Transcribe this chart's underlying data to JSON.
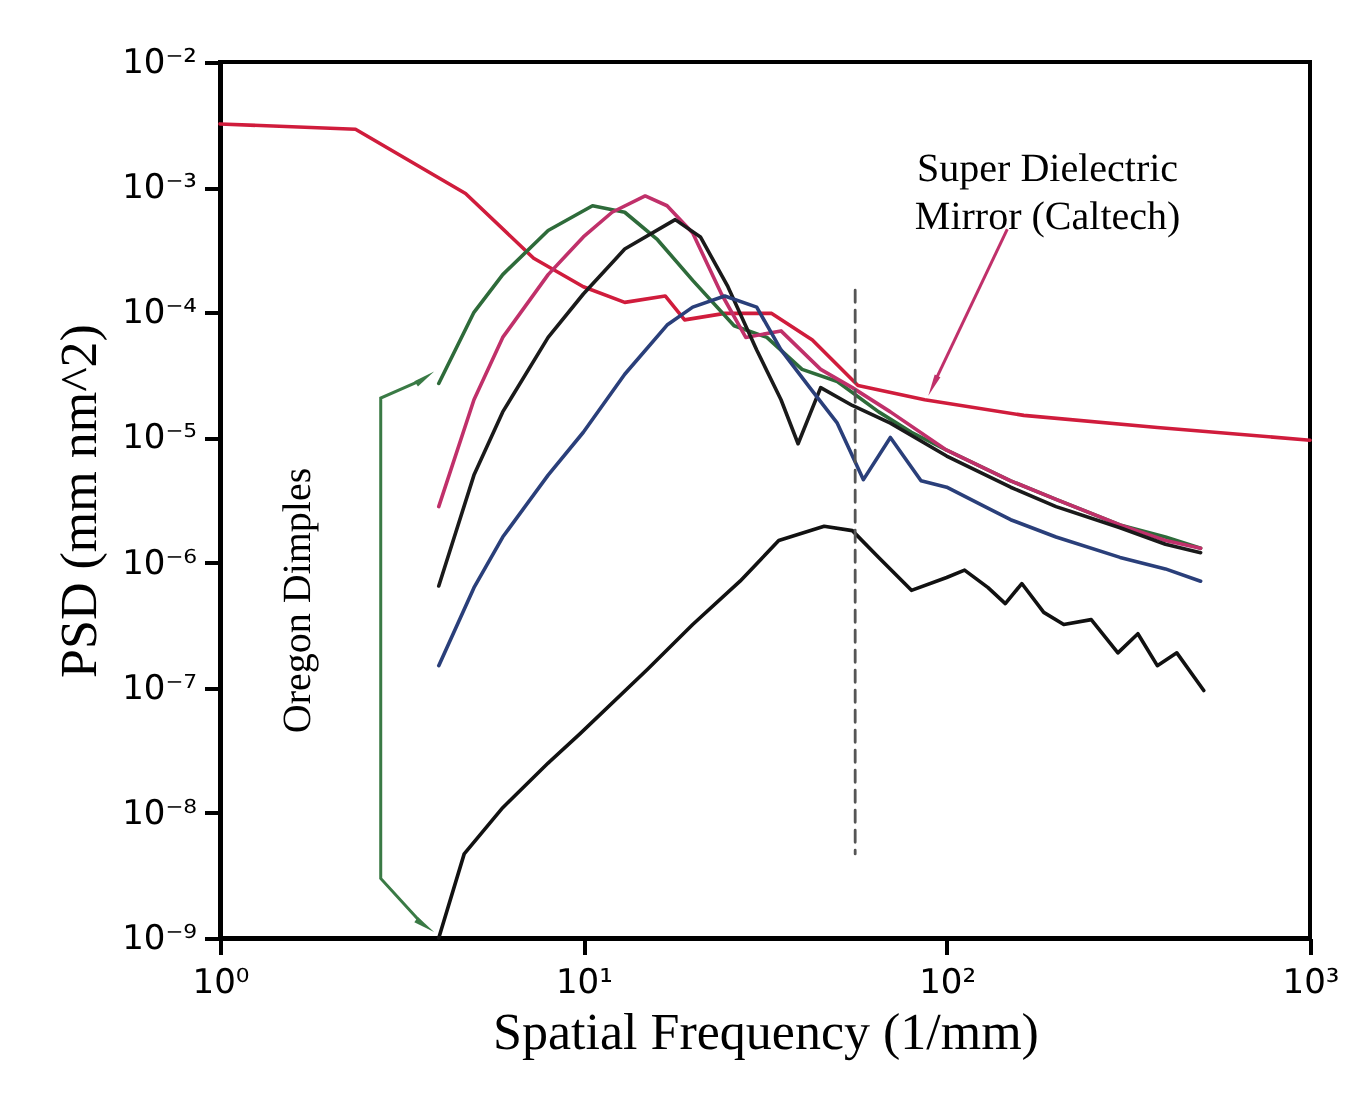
{
  "chart_data": {
    "type": "line",
    "xlabel": "Spatial Frequency (1/mm)",
    "ylabel": "PSD (mm nm^2)",
    "log": "xy",
    "grid": false,
    "marker": "none",
    "xlim": [
      1,
      1000
    ],
    "ylim": [
      1e-09,
      0.01
    ],
    "xticks": [
      {
        "value": 1,
        "label": "10⁰"
      },
      {
        "value": 10,
        "label": "10¹"
      },
      {
        "value": 100,
        "label": "10²"
      },
      {
        "value": 1000,
        "label": "10³"
      }
    ],
    "yticks": [
      {
        "value": 1e-09,
        "label": "10⁻⁹"
      },
      {
        "value": 1e-08,
        "label": "10⁻⁸"
      },
      {
        "value": 1e-07,
        "label": "10⁻⁷"
      },
      {
        "value": 1e-06,
        "label": "10⁻⁶"
      },
      {
        "value": 1e-05,
        "label": "10⁻⁵"
      },
      {
        "value": 0.0001,
        "label": "10⁻⁴"
      },
      {
        "value": 0.001,
        "label": "10⁻³"
      },
      {
        "value": 0.01,
        "label": "10⁻²"
      }
    ],
    "series": [
      {
        "color": "#d01c3c",
        "line_style": "solid",
        "x": [
          1,
          2.36,
          4.74,
          7.3,
          10,
          13,
          16.8,
          19,
          24.5,
          33,
          42.7,
          57,
          87,
          163,
          380,
          1000
        ],
        "values": [
          0.0032,
          0.0029,
          0.00089,
          0.00027,
          0.00016,
          0.00012,
          0.000135,
          8.7e-05,
          9.8e-05,
          9.8e-05,
          6e-05,
          2.6e-05,
          2e-05,
          1.5e-05,
          1.2e-05,
          9.5e-06
        ]
      },
      {
        "color": "#2e6b3a",
        "line_style": "solid",
        "x": [
          4,
          5,
          6,
          8,
          10.6,
          13,
          16,
          20,
          26,
          32,
          40,
          50,
          65,
          80,
          100,
          150,
          200,
          300,
          400,
          500
        ],
        "values": [
          2.7e-05,
          0.0001,
          0.0002,
          0.00045,
          0.00071,
          0.00063,
          0.00038,
          0.00018,
          7.8e-05,
          6.3e-05,
          3.5e-05,
          2.8e-05,
          1.6e-05,
          1.1e-05,
          7.9e-06,
          4.5e-06,
          3.2e-06,
          2e-06,
          1.6e-06,
          1.3e-06
        ]
      },
      {
        "color": "#c0306a",
        "line_style": "solid",
        "x": [
          4,
          5,
          6,
          8,
          10,
          12,
          14.8,
          17,
          20,
          24,
          28,
          35,
          45,
          55,
          70,
          100,
          150,
          200,
          300,
          400,
          500
        ],
        "values": [
          2.8e-06,
          2e-05,
          6.3e-05,
          0.0002,
          0.0004,
          0.00063,
          0.00085,
          0.00071,
          0.00043,
          0.00014,
          6.3e-05,
          7.1e-05,
          3.5e-05,
          2.5e-05,
          1.6e-05,
          7.9e-06,
          4.5e-06,
          3.2e-06,
          2e-06,
          1.5e-06,
          1.3e-06
        ]
      },
      {
        "color": "#1a1a1a",
        "line_style": "solid",
        "x": [
          4,
          5,
          6,
          8,
          10,
          13,
          17.9,
          21,
          25,
          30,
          35,
          39,
          45,
          55,
          70,
          100,
          150,
          200,
          300,
          400,
          500
        ],
        "values": [
          6.5e-07,
          5e-06,
          1.6e-05,
          6.3e-05,
          0.00014,
          0.00032,
          0.00055,
          0.0004,
          0.00016,
          5e-05,
          2e-05,
          8.9e-06,
          2.5e-05,
          1.8e-05,
          1.3e-05,
          7.1e-06,
          4e-06,
          2.8e-06,
          1.9e-06,
          1.4e-06,
          1.2e-06
        ]
      },
      {
        "color": "#2a3f7a",
        "line_style": "solid",
        "x": [
          4,
          5,
          6,
          8,
          10,
          13,
          17,
          20,
          24.5,
          30,
          35,
          42,
          50,
          59,
          70,
          85,
          100,
          150,
          200,
          300,
          400,
          500
        ],
        "values": [
          1.5e-07,
          6.3e-07,
          1.6e-06,
          5e-06,
          1.1e-05,
          3.2e-05,
          7.9e-05,
          0.00011,
          0.000135,
          0.00011,
          5e-05,
          2.5e-05,
          1.3e-05,
          4.6e-06,
          1e-05,
          4.5e-06,
          4e-06,
          2.2e-06,
          1.6e-06,
          1.1e-06,
          8.9e-07,
          7.1e-07
        ]
      },
      {
        "color": "#111111",
        "line_style": "solid",
        "x": [
          4,
          4.7,
          6,
          8,
          9.8,
          15,
          20,
          27,
          34.5,
          46,
          55,
          65,
          80,
          100,
          112,
          130,
          145,
          161,
          185,
          210,
          250,
          296,
          336,
          380,
          430,
          510
        ],
        "values": [
          1e-09,
          4.7e-09,
          1.1e-08,
          2.5e-08,
          4.3e-08,
          1.4e-07,
          3.2e-07,
          7.1e-07,
          1.5e-06,
          1.95e-06,
          1.8e-06,
          1.1e-06,
          6e-07,
          7.6e-07,
          8.7e-07,
          6.3e-07,
          4.7e-07,
          6.8e-07,
          4e-07,
          3.2e-07,
          3.5e-07,
          1.9e-07,
          2.7e-07,
          1.5e-07,
          1.9e-07,
          9.5e-08
        ]
      },
      {
        "color": "#555555",
        "line_style": "dashed",
        "x": [
          56,
          56
        ],
        "values": [
          0.00015,
          4.7e-09
        ]
      }
    ],
    "annotations": [
      {
        "text": "Super Dielectric Mirror (Caltech)",
        "x": 89,
        "y": 2.2e-05
      },
      "Oregon Dimples"
    ]
  }
}
